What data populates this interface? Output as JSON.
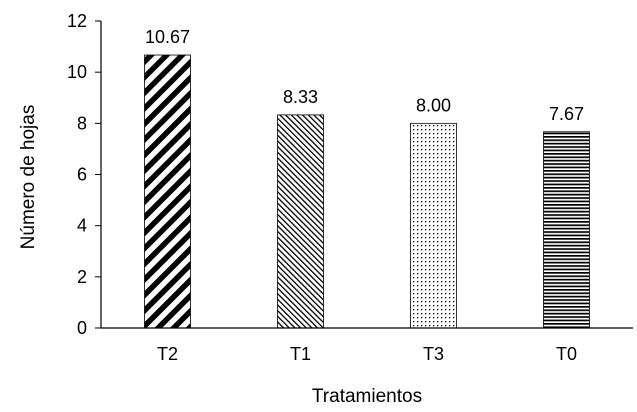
{
  "chart_data": {
    "type": "bar",
    "categories": [
      "T2",
      "T1",
      "T3",
      "T0"
    ],
    "values": [
      10.67,
      8.33,
      8.0,
      7.67
    ],
    "value_labels": [
      "10.67",
      "8.33",
      "8.00",
      "7.67"
    ],
    "patterns": [
      "diagonal-wide-stripes",
      "diagonal-fine-stripes",
      "dots",
      "horizontal-stripes"
    ],
    "xlabel": "Tratamientos",
    "ylabel": "Número de hojas",
    "ylim": [
      0,
      12
    ],
    "yticks": [
      "0",
      "2",
      "4",
      "6",
      "8",
      "10",
      "12"
    ],
    "grid": false,
    "legend": "none",
    "colors": {
      "bar_fill": "#000000",
      "background": "#ffffff",
      "axis": "#000000"
    }
  }
}
